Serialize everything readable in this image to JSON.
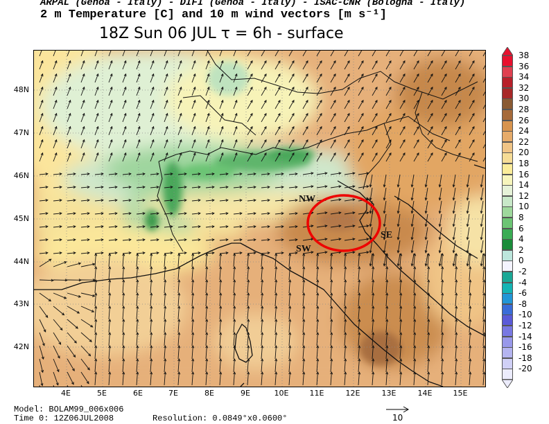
{
  "header": {
    "institutions": "ARPAL (Genoa - Italy)  -  DIFI (Genoa - Italy)  -  ISAC-CNR (Bologna - Italy)",
    "field": "2 m Temperature [C] and 10 m wind vectors [m s⁻¹]"
  },
  "title": "18Z Sun 06 JUL  τ = 6h  -  surface",
  "map": {
    "lat_labels": [
      "48N",
      "47N",
      "46N",
      "45N",
      "44N",
      "43N",
      "42N"
    ],
    "lon_labels": [
      "4E",
      "5E",
      "6E",
      "7E",
      "8E",
      "9E",
      "10E",
      "11E",
      "12E",
      "13E",
      "14E",
      "15E"
    ],
    "annotations": [
      "NW",
      "SW",
      "SE"
    ],
    "highlight_color": "#ee0000"
  },
  "colorbar": {
    "levels": [
      "38",
      "36",
      "34",
      "32",
      "30",
      "28",
      "26",
      "24",
      "22",
      "20",
      "18",
      "16",
      "14",
      "12",
      "10",
      "8",
      "6",
      "4",
      "2",
      "0",
      "-2",
      "-4",
      "-6",
      "-8",
      "-10",
      "-12",
      "-14",
      "-16",
      "-18",
      "-20"
    ],
    "colors": [
      "#e8102e",
      "#e04050",
      "#b8202a",
      "#a82828",
      "#8a5a32",
      "#a66a3a",
      "#d8944e",
      "#e6ab6a",
      "#f0c486",
      "#f6dc96",
      "#fbec9a",
      "#f7f5bc",
      "#e6f2d8",
      "#c8e8c8",
      "#9ed89c",
      "#6cc474",
      "#3aac54",
      "#1a8c3a",
      "#bce6dc",
      "#f4f4ff",
      "#1aa896",
      "#14b4b4",
      "#2296d6",
      "#3a6cd8",
      "#5a5ad8",
      "#7878e2",
      "#9898ea",
      "#b4b4f0",
      "#d0d0f6",
      "#ececfc"
    ]
  },
  "footer": {
    "model": "Model: BOLAM99_006x006",
    "time0": "Time 0: 12Z06JUL2008",
    "resolution": "Resolution: 0.0849°x0.0600°",
    "reference_vector": "10"
  }
}
